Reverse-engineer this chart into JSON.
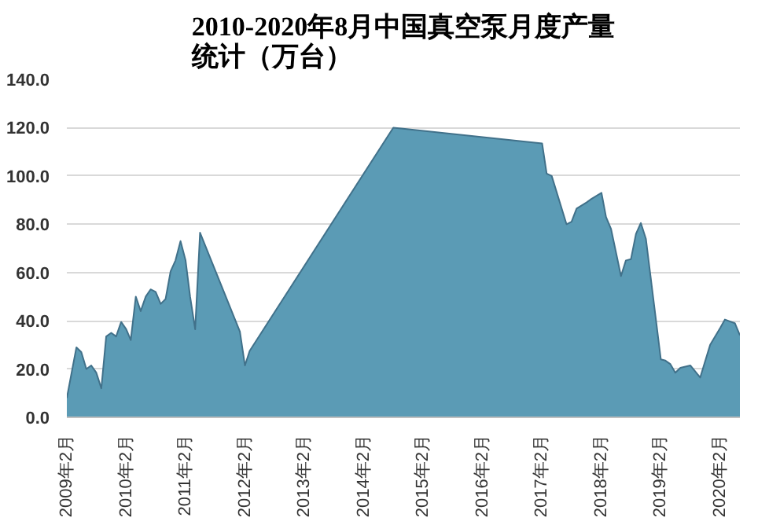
{
  "chart_data": {
    "type": "area",
    "title": "2010-2020年8月中国真空泵月度产量统计（万台）",
    "x": [
      "2009-02",
      "2009-03",
      "2009-04",
      "2009-05",
      "2009-06",
      "2009-07",
      "2009-08",
      "2009-09",
      "2009-10",
      "2009-11",
      "2009-12",
      "2010-01",
      "2010-02",
      "2010-03",
      "2010-04",
      "2010-05",
      "2010-06",
      "2010-07",
      "2010-08",
      "2010-09",
      "2010-10",
      "2010-11",
      "2010-12",
      "2011-01",
      "2011-02",
      "2011-03",
      "2011-04",
      "2011-05",
      "2012-01",
      "2012-02",
      "2012-03",
      "2014-08",
      "2017-02",
      "2017-03",
      "2017-04",
      "2017-07",
      "2017-08",
      "2017-09",
      "2017-11",
      "2017-12",
      "2018-02",
      "2018-03",
      "2018-04",
      "2018-06",
      "2018-07",
      "2018-08",
      "2018-09",
      "2018-10",
      "2018-11",
      "2019-02",
      "2019-03",
      "2019-04",
      "2019-05",
      "2019-06",
      "2019-08",
      "2019-10",
      "2019-12",
      "2020-02",
      "2020-03",
      "2020-05",
      "2020-06"
    ],
    "series": [
      {
        "color": "#5b9bb5",
        "values": [
          8,
          18,
          29,
          27,
          20,
          21.5,
          18.5,
          12,
          33.5,
          35,
          33.5,
          39.5,
          36.5,
          32,
          50,
          44,
          50,
          53,
          52,
          47,
          49,
          60.5,
          65,
          73,
          65,
          50,
          36.5,
          76.5,
          35.5,
          21.5,
          27.5,
          120,
          113.5,
          101,
          100,
          80,
          81,
          86.5,
          89,
          90.5,
          93,
          83,
          78,
          58.5,
          65,
          65.5,
          76,
          80.5,
          74,
          24,
          23.5,
          22,
          18.5,
          20.5,
          21.5,
          16.5,
          30,
          37,
          40.5,
          39,
          34
        ]
      }
    ],
    "xlim": [
      "2009-02",
      "2020-06"
    ],
    "xticks": [
      {
        "value": "2009-02",
        "label": "2009年2月"
      },
      {
        "value": "2010-02",
        "label": "2010年2月"
      },
      {
        "value": "2011-02",
        "label": "2011年2月"
      },
      {
        "value": "2012-02",
        "label": "2012年2月"
      },
      {
        "value": "2013-02",
        "label": "2013年2月"
      },
      {
        "value": "2014-02",
        "label": "2014年2月"
      },
      {
        "value": "2015-02",
        "label": "2015年2月"
      },
      {
        "value": "2016-02",
        "label": "2016年2月"
      },
      {
        "value": "2017-02",
        "label": "2017年2月"
      },
      {
        "value": "2018-02",
        "label": "2018年2月"
      },
      {
        "value": "2019-02",
        "label": "2019年2月"
      },
      {
        "value": "2020-02",
        "label": "2020年2月"
      }
    ],
    "ylim": [
      0,
      140
    ],
    "yticks": [
      {
        "value": 0,
        "label": "0.0"
      },
      {
        "value": 20,
        "label": "20.0"
      },
      {
        "value": 40,
        "label": "40.0"
      },
      {
        "value": 60,
        "label": "60.0"
      },
      {
        "value": 80,
        "label": "80.0"
      },
      {
        "value": 100,
        "label": "100.0"
      },
      {
        "value": 120,
        "label": "120.0"
      },
      {
        "value": 140,
        "label": "140.0"
      }
    ],
    "grid": "y"
  }
}
